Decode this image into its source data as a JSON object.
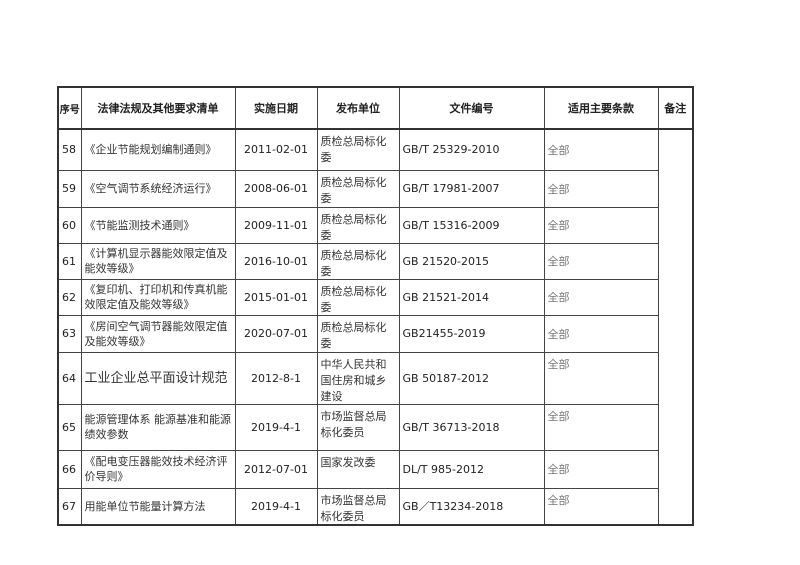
{
  "headers": [
    "序号",
    "法律法规及其他要求清单",
    "实施日期",
    "发布单位",
    "文件编号",
    "适用主要条款",
    "备注"
  ],
  "rows": [
    {
      "no": "58",
      "name": "《企业节能规划编制通则》",
      "date": "2011-02-01",
      "org": "质检总局标化委",
      "code": "GB/T 25329-2010",
      "scope": "全部"
    },
    {
      "no": "59",
      "name": "《空气调节系统经济运行》",
      "date": "2008-06-01",
      "org": "质检总局标化委",
      "code": "GB/T 17981-2007",
      "scope": "全部"
    },
    {
      "no": "60",
      "name": "《节能监测技术通则》",
      "date": "2009-11-01",
      "org": "质检总局标化委",
      "code": "GB/T 15316-2009",
      "scope": "全部"
    },
    {
      "no": "61",
      "name": "《计算机显示器能效限定值及能效等级》",
      "date": "2016-10-01",
      "org": "质检总局标化委",
      "code": "GB 21520-2015",
      "scope": "全部"
    },
    {
      "no": "62",
      "name": "《复印机、打印机和传真机能效限定值及能效等级》",
      "date": "2015-01-01",
      "org": "质检总局标化委",
      "code": "GB 21521-2014",
      "scope": "全部"
    },
    {
      "no": "63",
      "name": "《房间空气调节器能效限定值及能效等级》",
      "date": "2020-07-01",
      "org": "质检总局标化委",
      "code": "GB21455-2019",
      "scope": "全部"
    },
    {
      "no": "64",
      "name": "工业企业总平面设计规范",
      "date": "2012-8-1",
      "org": "中华人民共和国住房和城乡建设",
      "code": "GB 50187-2012",
      "scope": "全部"
    },
    {
      "no": "65",
      "name": "能源管理体系 能源基准和能源绩效参数",
      "date": "2019-4-1",
      "org": "市场监督总局标化委员",
      "code": "GB/T 36713-2018",
      "scope": "全部"
    },
    {
      "no": "66",
      "name": "《配电变压器能效技术经济评价导则》",
      "date": "2012-07-01",
      "org": "国家发改委",
      "code": "DL/T 985-2012",
      "scope": "全部"
    },
    {
      "no": "67",
      "name": "用能单位节能量计算方法",
      "date": "2019-4-1",
      "org": "市场监督总局标化委员",
      "code": "GB／T13234-2018",
      "scope": "全部"
    }
  ]
}
